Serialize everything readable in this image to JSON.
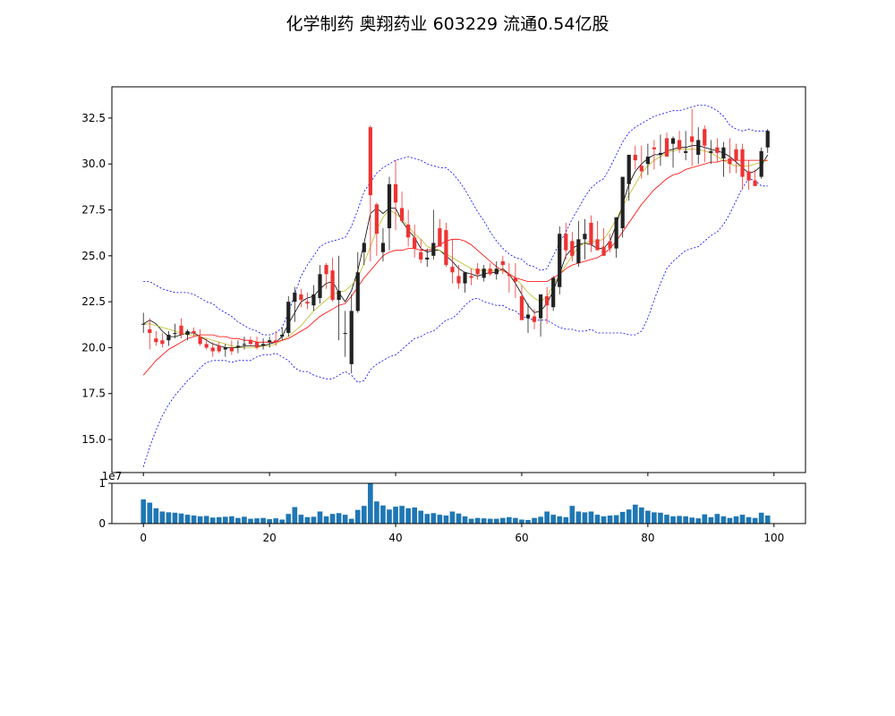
{
  "title": "化学制药 奥翔药业 603229 流通0.54亿股",
  "chart_data": {
    "type": "candlestick",
    "title": "化学制药 奥翔药业 603229 流通0.54亿股",
    "x": [
      0,
      1,
      2,
      3,
      4,
      5,
      6,
      7,
      8,
      9,
      10,
      11,
      12,
      13,
      14,
      15,
      16,
      17,
      18,
      19,
      20,
      21,
      22,
      23,
      24,
      25,
      26,
      27,
      28,
      29,
      30,
      31,
      32,
      33,
      34,
      35,
      36,
      37,
      38,
      39,
      40,
      41,
      42,
      43,
      44,
      45,
      46,
      47,
      48,
      49,
      50,
      51,
      52,
      53,
      54,
      55,
      56,
      57,
      58,
      59,
      60,
      61,
      62,
      63,
      64,
      65,
      66,
      67,
      68,
      69,
      70,
      71,
      72,
      73,
      74,
      75,
      76,
      77,
      78,
      79,
      80,
      81,
      82,
      83,
      84,
      85,
      86,
      87,
      88,
      89,
      90,
      91,
      92,
      93,
      94,
      95,
      96,
      97,
      98,
      99
    ],
    "xlim": [
      -5,
      105
    ],
    "x_ticks": [
      0,
      20,
      40,
      60,
      80,
      100
    ],
    "price_axis": {
      "ylim": [
        13.2,
        34.2
      ],
      "ticks": [
        15.0,
        17.5,
        20.0,
        22.5,
        25.0,
        27.5,
        30.0,
        32.5
      ],
      "tick_labels": [
        "15.0",
        "17.5",
        "20.0",
        "22.5",
        "25.0",
        "27.5",
        "30.0",
        "32.5"
      ]
    },
    "volume_axis": {
      "ylim": [
        0,
        1.0
      ],
      "ticks": [
        0,
        1
      ],
      "tick_labels": [
        "0",
        "1"
      ],
      "offset_label": "1e7"
    },
    "ohlc": {
      "open": [
        21.3,
        21.0,
        20.5,
        20.4,
        20.4,
        20.8,
        21.2,
        20.7,
        20.9,
        20.6,
        20.2,
        20.0,
        20.1,
        19.9,
        20.0,
        20.0,
        20.2,
        20.4,
        20.3,
        20.1,
        20.3,
        20.4,
        20.6,
        20.8,
        22.5,
        22.9,
        22.5,
        22.3,
        22.7,
        24.5,
        24.2,
        22.6,
        20.8,
        19.1,
        22.0,
        25.2,
        32.0,
        27.8,
        25.2,
        26.5,
        28.9,
        27.6,
        26.7,
        26.0,
        25.2,
        24.8,
        25.0,
        26.5,
        26.4,
        24.4,
        23.9,
        23.5,
        23.9,
        24.3,
        23.8,
        24.3,
        24.0,
        24.7,
        24.0,
        23.8,
        22.8,
        21.6,
        21.7,
        21.6,
        22.8,
        22.2,
        23.3,
        26.2,
        25.8,
        24.6,
        25.9,
        26.8,
        25.9,
        25.5,
        25.8,
        25.4,
        26.5,
        28.9,
        30.5,
        29.9,
        30.0,
        30.9,
        30.5,
        31.4,
        31.1,
        31.3,
        30.6,
        31.5,
        30.5,
        31.9,
        30.6,
        30.9,
        30.3,
        30.3,
        30.8,
        30.8,
        29.6,
        29.1,
        29.3,
        30.9
      ],
      "high": [
        21.9,
        21.6,
        20.9,
        20.8,
        20.9,
        21.3,
        21.6,
        21.0,
        21.1,
        21.0,
        20.5,
        20.3,
        20.3,
        20.2,
        20.4,
        20.4,
        20.6,
        20.6,
        20.6,
        20.5,
        20.6,
        20.9,
        21.1,
        22.8,
        23.3,
        23.2,
        23.0,
        23.4,
        24.5,
        24.6,
        24.9,
        25.0,
        22.0,
        22.9,
        25.2,
        25.7,
        32.1,
        27.9,
        26.5,
        29.3,
        30.2,
        28.5,
        27.5,
        26.7,
        25.9,
        25.4,
        27.5,
        27.0,
        26.8,
        25.9,
        24.5,
        23.8,
        24.3,
        24.6,
        24.5,
        24.6,
        24.7,
        25.0,
        24.6,
        24.6,
        23.4,
        22.4,
        22.1,
        22.8,
        23.3,
        23.9,
        26.6,
        26.8,
        26.3,
        26.9,
        27.0,
        27.2,
        26.9,
        26.5,
        26.2,
        26.5,
        29.0,
        30.5,
        31.0,
        31.0,
        31.1,
        31.3,
        31.6,
        31.7,
        31.5,
        31.8,
        31.8,
        33.0,
        32.0,
        32.1,
        31.3,
        31.4,
        31.2,
        31.4,
        31.1,
        31.1,
        30.2,
        29.7,
        30.9,
        31.9
      ],
      "low": [
        20.8,
        19.9,
        20.1,
        20.0,
        20.1,
        20.5,
        20.5,
        20.4,
        20.6,
        20.1,
        19.9,
        19.5,
        19.7,
        19.5,
        19.6,
        19.7,
        19.9,
        20.1,
        19.9,
        19.9,
        20.0,
        20.1,
        20.4,
        20.6,
        21.4,
        22.2,
        22.1,
        22.0,
        22.4,
        23.2,
        22.5,
        20.4,
        19.5,
        18.6,
        21.9,
        24.5,
        24.7,
        25.0,
        24.7,
        25.3,
        26.4,
        26.8,
        25.5,
        24.9,
        24.6,
        24.4,
        24.8,
        25.8,
        24.4,
        23.5,
        23.2,
        23.0,
        23.4,
        23.7,
        23.6,
        23.9,
        23.7,
        24.0,
        23.0,
        22.7,
        21.6,
        20.8,
        21.0,
        20.6,
        21.3,
        22.0,
        22.9,
        24.8,
        24.7,
        24.4,
        24.8,
        25.2,
        25.5,
        25.0,
        25.2,
        24.9,
        26.0,
        28.0,
        29.7,
        29.2,
        29.4,
        29.7,
        29.9,
        30.4,
        29.8,
        30.6,
        30.2,
        29.9,
        30.0,
        30.1,
        30.0,
        30.1,
        29.3,
        29.5,
        29.5,
        28.6,
        28.6,
        28.8,
        29.2,
        30.6
      ],
      "close": [
        21.3,
        20.8,
        20.3,
        20.2,
        20.7,
        20.8,
        20.7,
        20.9,
        20.8,
        20.2,
        20.0,
        19.8,
        19.8,
        20.0,
        19.8,
        20.1,
        20.2,
        20.2,
        20.0,
        20.2,
        20.4,
        20.3,
        20.7,
        22.5,
        23.0,
        22.6,
        22.4,
        22.9,
        24.0,
        24.0,
        22.6,
        23.1,
        20.8,
        22.0,
        24.1,
        25.7,
        28.3,
        26.2,
        25.7,
        28.9,
        27.9,
        26.9,
        26.0,
        25.4,
        24.8,
        24.9,
        25.7,
        25.5,
        24.5,
        24.1,
        23.5,
        24.1,
        23.8,
        24.0,
        24.3,
        24.0,
        24.3,
        24.5,
        23.9,
        23.6,
        21.5,
        21.8,
        21.4,
        22.9,
        22.3,
        23.8,
        26.2,
        25.3,
        25.0,
        25.9,
        26.2,
        25.6,
        25.3,
        25.0,
        25.4,
        27.1,
        29.3,
        30.5,
        30.2,
        29.6,
        30.4,
        30.8,
        30.6,
        30.4,
        31.4,
        30.8,
        30.7,
        31.2,
        31.3,
        31.0,
        30.7,
        30.6,
        30.9,
        30.0,
        30.2,
        29.3,
        29.1,
        28.8,
        30.7,
        31.8
      ]
    },
    "ma_series": [
      {
        "color": "#000000",
        "values": [
          21.3,
          21.5,
          21.3,
          20.9,
          20.6,
          20.6,
          20.7,
          20.8,
          20.8,
          20.6,
          20.4,
          20.2,
          20.1,
          20.0,
          20.0,
          20.0,
          20.1,
          20.1,
          20.1,
          20.1,
          20.2,
          20.3,
          20.6,
          21.3,
          21.9,
          22.5,
          22.7,
          22.8,
          23.2,
          23.5,
          23.6,
          23.0,
          22.5,
          23.1,
          24.2,
          25.7,
          27.3,
          27.6,
          27.3,
          27.6,
          27.6,
          26.9,
          26.4,
          26.0,
          25.4,
          25.2,
          25.3,
          25.3,
          25.0,
          24.7,
          24.3,
          24.1,
          24.0,
          23.9,
          24.0,
          24.1,
          24.1,
          24.3,
          24.0,
          23.5,
          22.9,
          22.3,
          21.9,
          22.0,
          22.4,
          23.1,
          24.0,
          25.0,
          25.4,
          25.6,
          25.7,
          25.6,
          25.4,
          25.4,
          25.8,
          26.7,
          27.8,
          28.9,
          29.6,
          30.0,
          30.3,
          30.5,
          30.5,
          30.7,
          30.8,
          30.9,
          30.9,
          31.0,
          31.0,
          30.9,
          30.8,
          30.7,
          30.6,
          30.4,
          30.1,
          29.8,
          29.5,
          29.6,
          29.9,
          30.5
        ]
      },
      {
        "color": "#bbbb22",
        "values": [
          21.3,
          21.3,
          21.2,
          21.1,
          21.0,
          20.9,
          20.8,
          20.7,
          20.7,
          20.6,
          20.5,
          20.4,
          20.3,
          20.2,
          20.1,
          20.0,
          20.0,
          20.0,
          20.0,
          20.1,
          20.1,
          20.2,
          20.4,
          20.6,
          20.9,
          21.2,
          21.6,
          22.0,
          22.3,
          22.6,
          22.9,
          23.0,
          23.1,
          23.4,
          23.8,
          24.6,
          25.5,
          26.4,
          27.1,
          27.5,
          27.3,
          27.0,
          26.6,
          26.2,
          25.9,
          25.5,
          25.4,
          25.3,
          25.1,
          24.9,
          24.7,
          24.5,
          24.3,
          24.2,
          24.2,
          24.2,
          24.2,
          24.2,
          24.0,
          23.8,
          23.4,
          23.0,
          22.7,
          22.5,
          22.8,
          23.4,
          24.0,
          24.5,
          25.0,
          25.5,
          25.7,
          25.8,
          25.8,
          25.9,
          26.4,
          27.0,
          27.7,
          28.3,
          28.9,
          29.5,
          29.9,
          30.2,
          30.4,
          30.6,
          30.7,
          30.8,
          30.8,
          30.8,
          30.8,
          30.7,
          30.6,
          30.4,
          30.2,
          30.0,
          29.9,
          29.9,
          29.9,
          30.0,
          30.1,
          30.2
        ]
      },
      {
        "color": "#ff0000",
        "values": [
          18.5,
          18.9,
          19.3,
          19.6,
          19.9,
          20.1,
          20.3,
          20.5,
          20.6,
          20.7,
          20.7,
          20.7,
          20.6,
          20.6,
          20.5,
          20.5,
          20.4,
          20.4,
          20.3,
          20.3,
          20.3,
          20.3,
          20.4,
          20.5,
          20.7,
          20.9,
          21.1,
          21.4,
          21.7,
          21.9,
          22.1,
          22.3,
          22.4,
          22.8,
          23.3,
          23.8,
          24.2,
          24.6,
          25.0,
          25.2,
          25.3,
          25.3,
          25.4,
          25.4,
          25.3,
          25.3,
          25.4,
          25.6,
          25.8,
          25.9,
          25.9,
          25.8,
          25.6,
          25.3,
          25.0,
          24.7,
          24.4,
          24.2,
          24.0,
          23.8,
          23.7,
          23.6,
          23.6,
          23.6,
          23.6,
          23.8,
          24.0,
          24.3,
          24.5,
          24.6,
          24.7,
          24.8,
          24.9,
          25.1,
          25.4,
          25.8,
          26.3,
          26.8,
          27.3,
          27.8,
          28.2,
          28.6,
          28.9,
          29.2,
          29.4,
          29.5,
          29.7,
          29.8,
          29.9,
          30.0,
          30.1,
          30.1,
          30.2,
          30.2,
          30.2,
          30.2,
          30.2,
          30.2,
          30.2,
          30.2
        ]
      }
    ],
    "bollinger": {
      "color": "#0000ff",
      "upper": [
        23.6,
        23.6,
        23.4,
        23.2,
        23.1,
        23.0,
        23.0,
        23.0,
        22.9,
        22.7,
        22.5,
        22.4,
        22.1,
        21.9,
        21.7,
        21.4,
        21.2,
        21.0,
        20.9,
        20.7,
        20.7,
        20.8,
        21.1,
        21.9,
        22.9,
        23.9,
        24.5,
        25.0,
        25.5,
        25.7,
        25.8,
        25.9,
        26.0,
        26.6,
        27.5,
        28.5,
        29.0,
        29.5,
        29.8,
        30.0,
        30.2,
        30.3,
        30.4,
        30.3,
        30.2,
        30.0,
        29.9,
        29.8,
        29.8,
        29.5,
        29.1,
        28.6,
        28.0,
        27.4,
        26.9,
        26.3,
        25.8,
        25.4,
        25.1,
        24.9,
        24.8,
        24.5,
        24.4,
        24.2,
        24.3,
        25.0,
        25.7,
        26.3,
        27.0,
        27.6,
        28.2,
        28.7,
        29.0,
        29.2,
        29.8,
        30.5,
        31.2,
        31.7,
        32.0,
        32.2,
        32.4,
        32.6,
        32.7,
        32.8,
        32.9,
        32.9,
        33.0,
        33.1,
        33.2,
        33.2,
        33.1,
        32.9,
        32.6,
        32.1,
        31.9,
        31.8,
        31.9,
        31.8,
        31.8,
        31.8
      ],
      "lower": [
        13.5,
        14.6,
        15.5,
        16.3,
        16.9,
        17.4,
        17.8,
        18.2,
        18.5,
        18.9,
        19.2,
        19.3,
        19.3,
        19.3,
        19.2,
        19.3,
        19.3,
        19.3,
        19.5,
        19.6,
        19.6,
        19.7,
        19.5,
        19.3,
        18.9,
        18.7,
        18.7,
        18.5,
        18.4,
        18.3,
        18.3,
        18.5,
        18.7,
        18.5,
        18.1,
        18.2,
        18.8,
        19.1,
        19.3,
        19.5,
        19.6,
        19.9,
        20.2,
        20.5,
        20.6,
        20.8,
        20.9,
        21.2,
        21.5,
        21.6,
        21.9,
        22.3,
        22.6,
        22.7,
        22.5,
        22.4,
        22.3,
        22.3,
        22.1,
        22.0,
        21.7,
        21.6,
        21.5,
        21.5,
        21.5,
        21.3,
        21.1,
        21.0,
        21.0,
        20.9,
        20.9,
        21.0,
        20.8,
        20.8,
        20.8,
        20.8,
        20.8,
        20.7,
        20.7,
        20.9,
        21.6,
        22.6,
        23.5,
        24.3,
        24.7,
        25.0,
        25.3,
        25.4,
        25.5,
        25.8,
        26.1,
        26.3,
        26.7,
        27.3,
        28.0,
        28.7,
        29.2,
        29.1,
        28.8,
        28.8
      ]
    },
    "volume": [
      0.6,
      0.52,
      0.38,
      0.3,
      0.28,
      0.27,
      0.25,
      0.22,
      0.2,
      0.18,
      0.19,
      0.15,
      0.16,
      0.17,
      0.18,
      0.14,
      0.17,
      0.12,
      0.13,
      0.14,
      0.11,
      0.13,
      0.1,
      0.24,
      0.41,
      0.22,
      0.16,
      0.17,
      0.3,
      0.18,
      0.24,
      0.26,
      0.22,
      0.12,
      0.34,
      0.44,
      1.0,
      0.55,
      0.45,
      0.35,
      0.42,
      0.44,
      0.38,
      0.4,
      0.32,
      0.24,
      0.26,
      0.22,
      0.2,
      0.3,
      0.25,
      0.18,
      0.12,
      0.14,
      0.13,
      0.12,
      0.12,
      0.14,
      0.16,
      0.14,
      0.1,
      0.09,
      0.14,
      0.17,
      0.3,
      0.22,
      0.18,
      0.16,
      0.44,
      0.3,
      0.28,
      0.3,
      0.22,
      0.18,
      0.2,
      0.21,
      0.29,
      0.35,
      0.47,
      0.4,
      0.32,
      0.28,
      0.27,
      0.22,
      0.18,
      0.19,
      0.18,
      0.15,
      0.13,
      0.23,
      0.16,
      0.24,
      0.18,
      0.14,
      0.18,
      0.22,
      0.16,
      0.14,
      0.27,
      0.2
    ],
    "up_color": "#222222",
    "down_color": "#ee3333",
    "volume_color": "#1f77b4"
  }
}
